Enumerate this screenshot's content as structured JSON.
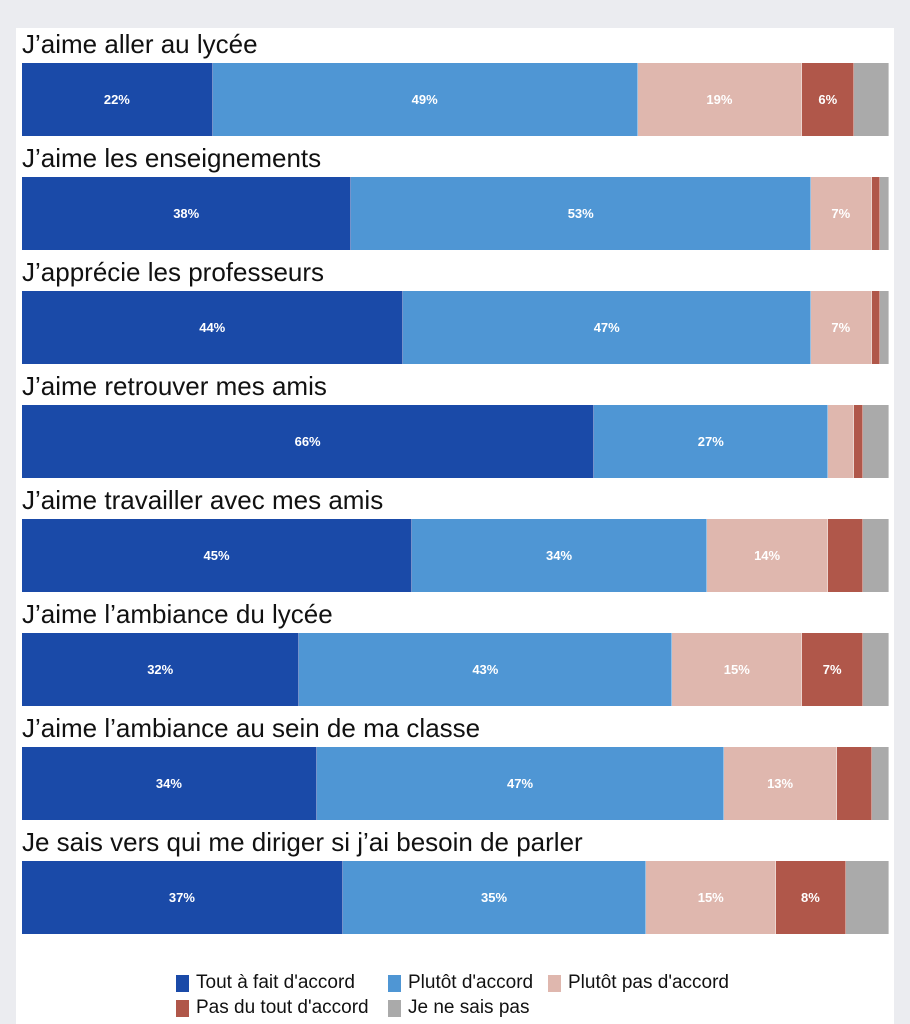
{
  "chart_data": {
    "type": "bar",
    "orientation": "horizontal-stacked-100",
    "categories": [
      "J’aime aller au lycée",
      "J’aime les enseignements",
      "J’apprécie les professeurs",
      "J’aime retrouver mes amis",
      "J’aime travailler avec mes amis",
      "J’aime l’ambiance du lycée",
      "J’aime l’ambiance au sein de ma classe",
      "Je sais vers qui me diriger si j’ai besoin de parler"
    ],
    "series": [
      {
        "name": "Tout à fait d'accord",
        "color": "#1a4aa8",
        "values": [
          22,
          38,
          44,
          66,
          45,
          32,
          34,
          37
        ],
        "labels": [
          "22%",
          "38%",
          "44%",
          "66%",
          "45%",
          "32%",
          "34%",
          "37%"
        ]
      },
      {
        "name": "Plutôt d'accord",
        "color": "#4f96d4",
        "values": [
          49,
          53,
          47,
          27,
          34,
          43,
          47,
          35
        ],
        "labels": [
          "49%",
          "53%",
          "47%",
          "27%",
          "34%",
          "43%",
          "47%",
          "35%"
        ]
      },
      {
        "name": "Plutôt pas d'accord",
        "color": "#dfb7ae",
        "values": [
          19,
          7,
          7,
          3,
          14,
          15,
          13,
          15
        ],
        "labels": [
          "19%",
          "7%",
          "7%",
          "",
          "14%",
          "15%",
          "13%",
          "15%"
        ]
      },
      {
        "name": "Pas du tout d'accord",
        "color": "#b0574a",
        "values": [
          6,
          1,
          1,
          1,
          4,
          7,
          4,
          8
        ],
        "labels": [
          "6%",
          "",
          "",
          "",
          "",
          "7%",
          "",
          "8%"
        ]
      },
      {
        "name": "Je ne sais pas",
        "color": "#aaaaaa",
        "values": [
          4,
          1,
          1,
          3,
          3,
          3,
          2,
          5
        ],
        "labels": [
          "",
          "",
          "",
          "",
          "",
          "",
          "",
          ""
        ]
      }
    ],
    "xlim": [
      0,
      100
    ],
    "legend": "bottom"
  }
}
